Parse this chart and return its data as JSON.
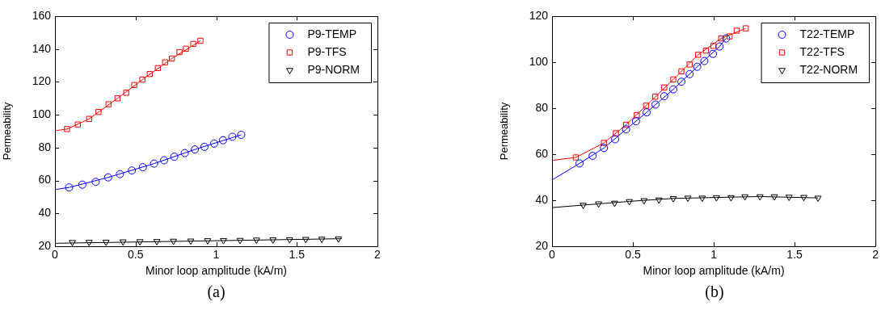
{
  "chart_data": [
    {
      "type": "scatter",
      "xlabel": "Minor loop amplitude (kA/m)",
      "ylabel": "Permeability",
      "xlim": [
        0,
        2
      ],
      "xticks": [
        0,
        0.5,
        1,
        1.5,
        2
      ],
      "ylim": [
        20,
        160
      ],
      "yticks": [
        20,
        40,
        60,
        80,
        100,
        120,
        140,
        160
      ],
      "grid": false,
      "legend": "top right",
      "annotations": [
        "(a)"
      ],
      "series": [
        {
          "name": "P9-TEMP",
          "type": "scatter",
          "marker": "circle",
          "color": "#0000ff",
          "x": [
            0.088,
            0.17,
            0.253,
            0.33,
            0.403,
            0.477,
            0.545,
            0.615,
            0.677,
            0.74,
            0.805,
            0.868,
            0.927,
            0.987,
            1.042,
            1.1,
            1.155
          ],
          "values": [
            55.8,
            57.5,
            59.2,
            61.9,
            63.9,
            66.1,
            68.1,
            70.3,
            72.3,
            74.5,
            76.7,
            78.9,
            80.5,
            82.5,
            84.5,
            86.6,
            87.8
          ]
        },
        {
          "name": "P9-TFS",
          "type": "scatter",
          "marker": "square",
          "color": "#ff0000",
          "x": [
            0.075,
            0.142,
            0.212,
            0.27,
            0.332,
            0.388,
            0.442,
            0.492,
            0.542,
            0.588,
            0.638,
            0.683,
            0.725,
            0.772,
            0.812,
            0.858,
            0.902
          ],
          "values": [
            91.3,
            94.1,
            97.5,
            101.7,
            106.4,
            110,
            113.4,
            118.1,
            121.4,
            124.8,
            128.4,
            131.9,
            134.2,
            138.1,
            140.2,
            143.1,
            145
          ]
        },
        {
          "name": "P9-NORM",
          "type": "scatter",
          "marker": "triangle",
          "color": "#000000",
          "x": [
            0.108,
            0.212,
            0.317,
            0.422,
            0.527,
            0.632,
            0.735,
            0.842,
            0.947,
            1.045,
            1.148,
            1.25,
            1.352,
            1.455,
            1.555,
            1.655,
            1.758
          ],
          "values": [
            22.4,
            22.5,
            22.6,
            22.8,
            22.9,
            23,
            23.2,
            23.3,
            23.5,
            23.6,
            23.7,
            23.9,
            24,
            24.1,
            24.3,
            24.4,
            24.6
          ]
        },
        {
          "type": "line",
          "marker": "none",
          "color": "#0000ff",
          "x": [
            0,
            0.088,
            0.33,
            0.615,
            0.868,
            1.155
          ],
          "values": [
            54.5,
            55.8,
            61.9,
            70.3,
            78.9,
            87.8
          ]
        },
        {
          "type": "line",
          "marker": "none",
          "color": "#ff0000",
          "x": [
            0,
            0.075,
            0.212,
            0.388,
            0.542,
            0.725,
            0.902
          ],
          "values": [
            90.3,
            91.3,
            97.5,
            110,
            121.4,
            134.2,
            145
          ]
        },
        {
          "type": "line",
          "marker": "none",
          "color": "#000000",
          "x": [
            0,
            1.78
          ],
          "values": [
            21.8,
            24.6
          ]
        }
      ]
    },
    {
      "type": "scatter",
      "xlabel": "Minor loop amplitude (kA/m)",
      "ylabel": "Permeability",
      "xlim": [
        0,
        2
      ],
      "xticks": [
        0,
        0.5,
        1,
        1.5,
        2
      ],
      "ylim": [
        20,
        120
      ],
      "yticks": [
        20,
        40,
        60,
        80,
        100,
        120
      ],
      "grid": false,
      "legend": "top right",
      "annotations": [
        "(b)"
      ],
      "series": [
        {
          "name": "T22-TEMP",
          "type": "scatter",
          "marker": "circle",
          "color": "#0000ff",
          "x": [
            0.17,
            0.251,
            0.321,
            0.39,
            0.458,
            0.519,
            0.585,
            0.64,
            0.694,
            0.75,
            0.8,
            0.851,
            0.898,
            0.942,
            0.995,
            1.036,
            1.076
          ],
          "values": [
            56,
            59.3,
            62.7,
            66.5,
            70.8,
            74.3,
            78.2,
            81.6,
            85.2,
            88.2,
            91.5,
            94.8,
            98,
            100.5,
            103.6,
            106.8,
            110.3
          ]
        },
        {
          "name": "T22-TFS",
          "type": "scatter",
          "marker": "square",
          "color": "#ff0000",
          "x": [
            0.147,
            0.321,
            0.395,
            0.458,
            0.524,
            0.582,
            0.638,
            0.694,
            0.75,
            0.8,
            0.851,
            0.903,
            0.952,
            0.998,
            1.046,
            1.098,
            1.142,
            1.198
          ],
          "values": [
            58.6,
            64.9,
            69.1,
            72.8,
            77,
            81.1,
            85,
            89,
            92.5,
            96,
            99,
            103.2,
            105,
            107.1,
            110.3,
            111.2,
            113.7,
            114.7
          ]
        },
        {
          "name": "T22-NORM",
          "type": "scatter",
          "marker": "triangle",
          "color": "#000000",
          "x": [
            0.193,
            0.288,
            0.387,
            0.478,
            0.569,
            0.661,
            0.75,
            0.84,
            0.929,
            1.017,
            1.107,
            1.193,
            1.286,
            1.375,
            1.466,
            1.557,
            1.645
          ],
          "values": [
            37.9,
            38.5,
            38.8,
            39.5,
            39.9,
            40.2,
            40.8,
            41,
            41,
            41.2,
            41.2,
            41.6,
            41.6,
            41.6,
            41.4,
            41.3,
            41
          ]
        },
        {
          "type": "line",
          "marker": "none",
          "color": "#0000ff",
          "x": [
            0,
            0.17,
            0.321,
            0.458,
            0.585,
            0.75,
            0.898,
            1.036,
            1.076
          ],
          "values": [
            48.8,
            56,
            62.7,
            70.8,
            78.2,
            88.2,
            98,
            106.8,
            110.3
          ]
        },
        {
          "type": "line",
          "marker": "none",
          "color": "#ff0000",
          "x": [
            0,
            0.147,
            0.321,
            0.458,
            0.582,
            0.75,
            0.903,
            1.046,
            1.198
          ],
          "values": [
            57.3,
            58.6,
            64.9,
            72.8,
            81.1,
            92.5,
            103.2,
            110.3,
            114.7
          ]
        },
        {
          "type": "line",
          "marker": "none",
          "color": "#000000",
          "x": [
            0,
            0.193,
            0.478,
            0.75,
            1.017,
            1.286,
            1.645
          ],
          "values": [
            36.8,
            37.9,
            39.5,
            40.8,
            41.2,
            41.6,
            41
          ]
        }
      ]
    }
  ]
}
